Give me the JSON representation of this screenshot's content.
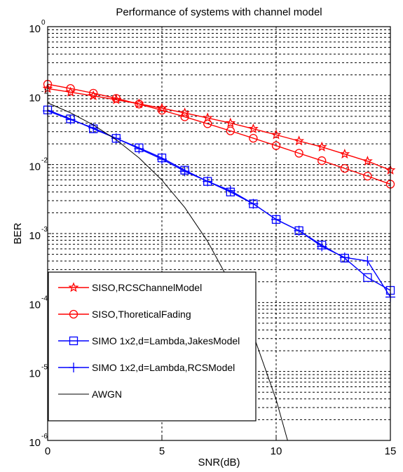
{
  "chart_data": {
    "type": "line",
    "title": "Performance of systems with channel model",
    "xlabel": "SNR(dB)",
    "ylabel": "BER",
    "y_scale": "log",
    "xlim": [
      0,
      15
    ],
    "ylim": [
      1e-06,
      1
    ],
    "x_ticks": [
      "0",
      "5",
      "10",
      "15"
    ],
    "y_ticks": [
      {
        "value": 1.0,
        "base": "10",
        "exp": "0"
      },
      {
        "value": 0.1,
        "base": "10",
        "exp": "-1"
      },
      {
        "value": 0.01,
        "base": "10",
        "exp": "-2"
      },
      {
        "value": 0.001,
        "base": "10",
        "exp": "-3"
      },
      {
        "value": 0.0001,
        "base": "10",
        "exp": "-4"
      },
      {
        "value": 1e-05,
        "base": "10",
        "exp": "-5"
      },
      {
        "value": 1e-06,
        "base": "10",
        "exp": "-6"
      }
    ],
    "grid": true,
    "legend_position": "bottom-left",
    "series": [
      {
        "name": "SISO,RCSChannelModel",
        "color": "#ff0000",
        "marker": "star",
        "x": [
          0,
          1,
          2,
          3,
          4,
          5,
          6,
          7,
          8,
          9,
          10,
          11,
          12,
          13,
          14,
          15
        ],
        "y": [
          0.1266,
          0.1122,
          0.0993,
          0.0871,
          0.0759,
          0.0656,
          0.0561,
          0.0475,
          0.04,
          0.033,
          0.027,
          0.022,
          0.018,
          0.0142,
          0.0112,
          0.0083
        ]
      },
      {
        "name": "SISO,ThoreticalFading",
        "color": "#ff0000",
        "marker": "circle",
        "x": [
          0,
          1,
          2,
          3,
          4,
          5,
          6,
          7,
          8,
          9,
          10,
          11,
          12,
          13,
          14,
          15
        ],
        "y": [
          0.1464,
          0.1269,
          0.1085,
          0.0913,
          0.0754,
          0.0614,
          0.0493,
          0.0391,
          0.0308,
          0.0241,
          0.0188,
          0.0146,
          0.0114,
          0.0088,
          0.0068,
          0.0052
        ]
      },
      {
        "name": "SIMO 1x2,d=Lambda,JakesModel",
        "color": "#0000ff",
        "marker": "square",
        "x": [
          0,
          1,
          2,
          3,
          4,
          5,
          6,
          7,
          8,
          9,
          10,
          11,
          12,
          13,
          14,
          15
        ],
        "y": [
          0.062,
          0.046,
          0.033,
          0.024,
          0.0175,
          0.0125,
          0.0083,
          0.0057,
          0.004,
          0.0027,
          0.0016,
          0.0011,
          0.00068,
          0.00044,
          0.00023,
          0.00015
        ]
      },
      {
        "name": "SIMO 1x2,d=Lambda,RCSModel",
        "color": "#0000ff",
        "marker": "plus",
        "x": [
          0,
          1,
          2,
          3,
          4,
          5,
          6,
          7,
          8,
          9,
          10,
          11,
          12,
          13,
          14,
          15
        ],
        "y": [
          0.06,
          0.045,
          0.034,
          0.024,
          0.017,
          0.012,
          0.008,
          0.0057,
          0.0042,
          0.0027,
          0.0016,
          0.0011,
          0.00065,
          0.00045,
          0.0004,
          0.00012
        ]
      },
      {
        "name": "AWGN",
        "color": "#000000",
        "marker": "none",
        "x": [
          0,
          1,
          2,
          3,
          4,
          5,
          6,
          7,
          8,
          9,
          10,
          10.5
        ],
        "y": [
          0.0786,
          0.0563,
          0.0375,
          0.0229,
          0.0125,
          0.00595,
          0.00239,
          0.00077,
          0.00019,
          3.4e-05,
          3.9e-06,
          1e-06
        ]
      }
    ]
  }
}
